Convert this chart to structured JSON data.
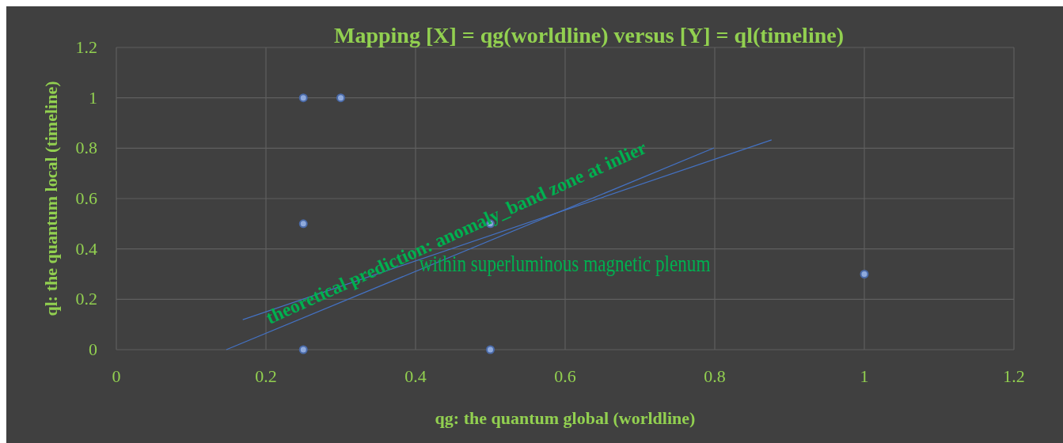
{
  "chart_data": {
    "type": "scatter",
    "title": "Mapping [X] = qg(worldline) versus [Y] = ql(timeline)",
    "xlabel": "qg: the quantum global (worldline)",
    "ylabel": "ql: the quantum local (timeline)",
    "series": [
      {
        "color": "#8faadc",
        "marker": "circle",
        "x": [
          0.25,
          0.3,
          0.25,
          0.5,
          0.25,
          0.5,
          1
        ],
        "values": [
          1,
          1,
          0.5,
          0.5,
          0,
          0,
          0.3
        ]
      },
      {
        "type": "line",
        "marker": "none",
        "color": "#4472c4",
        "x": [
          0.147,
          0.799
        ],
        "values": [
          0,
          0.801
        ]
      },
      {
        "type": "line",
        "marker": "none",
        "color": "#4472c4",
        "x": [
          0.169,
          0.876
        ],
        "values": [
          0.119,
          0.833
        ]
      }
    ],
    "xlim": [
      0,
      1.2
    ],
    "ylim": [
      0,
      1.2
    ],
    "xticks": [
      0,
      0.2,
      0.4,
      0.6,
      0.8,
      1,
      1.2
    ],
    "yticks": [
      0,
      0.2,
      0.4,
      0.6,
      0.8,
      1,
      1.2
    ],
    "grid": true,
    "line_style": "solid",
    "annotations": [
      "theoretical prediction: anomaly_band zone at inlier",
      "within superluminous magnetic plenum"
    ]
  }
}
